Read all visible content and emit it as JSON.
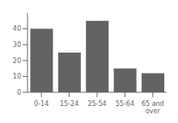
{
  "chart_data": {
    "type": "bar",
    "categories": [
      "0-14",
      "15-24",
      "25-54",
      "55-64",
      "65 and\nover"
    ],
    "values": [
      40,
      25,
      45,
      15,
      12
    ],
    "color": "#636363",
    "ylim": [
      0,
      50
    ],
    "yticks": [
      0,
      10,
      20,
      30,
      40
    ],
    "grid": false
  }
}
